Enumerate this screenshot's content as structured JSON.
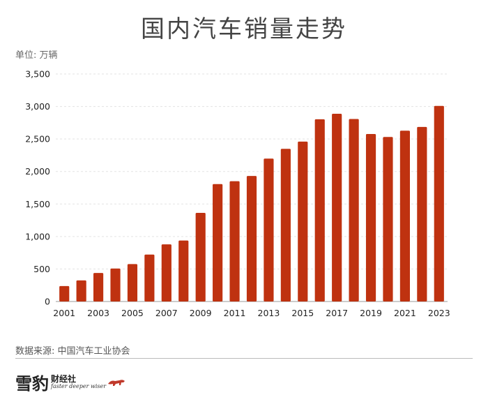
{
  "chart_data": {
    "type": "bar",
    "title": "国内汽车销量走势",
    "unit_label": "单位: 万辆",
    "xlabel": "",
    "ylabel": "",
    "categories": [
      "2001",
      "2002",
      "2003",
      "2004",
      "2005",
      "2006",
      "2007",
      "2008",
      "2009",
      "2010",
      "2011",
      "2012",
      "2013",
      "2014",
      "2015",
      "2016",
      "2017",
      "2018",
      "2019",
      "2020",
      "2021",
      "2022",
      "2023"
    ],
    "values": [
      237,
      325,
      439,
      507,
      576,
      722,
      879,
      938,
      1364,
      1806,
      1851,
      1931,
      2198,
      2349,
      2460,
      2803,
      2888,
      2808,
      2577,
      2531,
      2628,
      2686,
      3009
    ],
    "ylim": [
      0,
      3500
    ],
    "yticks": [
      0,
      500,
      1000,
      1500,
      2000,
      2500,
      3000,
      3500
    ],
    "ytick_labels": [
      "0",
      "500",
      "1,000",
      "1,500",
      "2,000",
      "2,500",
      "3,000",
      "3,500"
    ],
    "xtick_labels": [
      "2001",
      "2003",
      "2005",
      "2007",
      "2009",
      "2011",
      "2013",
      "2015",
      "2017",
      "2019",
      "2021",
      "2023"
    ],
    "grid": true,
    "legend": "none",
    "bar_color": "#bf3210",
    "grid_color": "#e3e3e3"
  },
  "footer": {
    "source": "数据来源: 中国汽车工业协会"
  },
  "logo": {
    "main": "雪豹",
    "sub": "财经社",
    "tagline": "faster deeper wiser"
  }
}
